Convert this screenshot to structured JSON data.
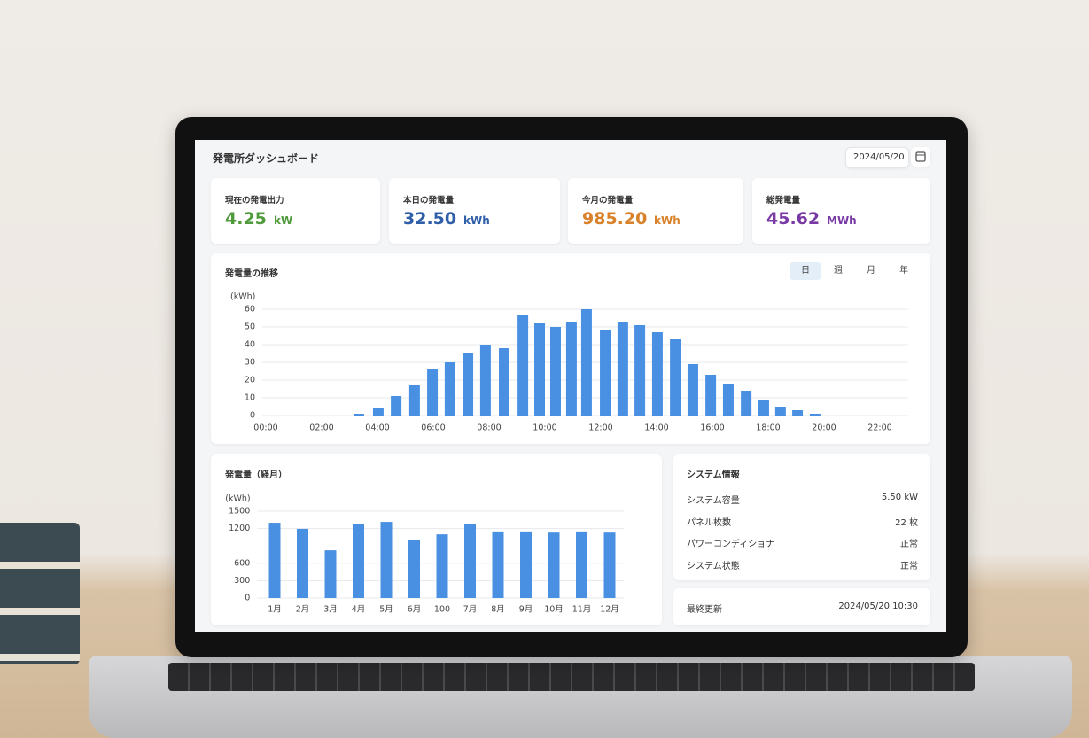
{
  "header": {
    "title": "発電所ダッシュボード",
    "date": "2024/05/20"
  },
  "kpis": [
    {
      "label": "現在の発電出力",
      "value": "4.25",
      "unit": "kW",
      "color": "#4f9a3b"
    },
    {
      "label": "本日の発電量",
      "value": "32.50",
      "unit": "kWh",
      "color": "#2f5fa8"
    },
    {
      "label": "今月の発電量",
      "value": "985.20",
      "unit": "kWh",
      "color": "#d9822b"
    },
    {
      "label": "総発電量",
      "value": "45.62",
      "unit": "MWh",
      "color": "#7a3aa5"
    }
  ],
  "period_tabs": [
    "日",
    "週",
    "月",
    "年"
  ],
  "chart_data": [
    {
      "type": "bar",
      "title": "発電量の推移",
      "y_unit": "(kWh)",
      "x": [
        3.33,
        4.03,
        4.67,
        5.33,
        5.97,
        6.6,
        7.24,
        7.87,
        8.54,
        9.21,
        9.81,
        10.38,
        10.95,
        11.49,
        12.16,
        12.79,
        13.4,
        14.03,
        14.67,
        15.3,
        15.94,
        16.57,
        17.21,
        17.84,
        18.44,
        19.05,
        19.68
      ],
      "values": [
        1,
        4,
        11,
        17,
        26,
        30,
        35,
        40,
        38,
        57,
        52,
        50,
        53,
        60,
        48,
        53,
        51,
        47,
        43,
        29,
        23,
        18,
        14,
        9,
        5,
        3,
        1
      ],
      "color": "#4a90e2",
      "xlim": [
        0,
        23
      ],
      "xticks": [
        {
          "value": 0,
          "label": "00:00"
        },
        {
          "value": 2,
          "label": "02:00"
        },
        {
          "value": 4,
          "label": "04:00"
        },
        {
          "value": 6,
          "label": "06:00"
        },
        {
          "value": 8,
          "label": "08:00"
        },
        {
          "value": 10,
          "label": "10:00"
        },
        {
          "value": 12,
          "label": "12:00"
        },
        {
          "value": 14,
          "label": "14:00"
        },
        {
          "value": 16,
          "label": "16:00"
        },
        {
          "value": 18,
          "label": "18:00"
        },
        {
          "value": 20,
          "label": "20:00"
        },
        {
          "value": 22,
          "label": "22:00"
        }
      ],
      "ylim": [
        0,
        60
      ],
      "yticks": [
        0,
        10,
        20,
        30,
        40,
        50,
        60
      ],
      "grid": true
    },
    {
      "type": "bar",
      "title": "発電量（経月）",
      "y_unit": "(kWh)",
      "categories": [
        "1月",
        "2月",
        "3月",
        "4月",
        "5月",
        "6月",
        "100",
        "7月",
        "8月",
        "9月",
        "10月",
        "11月",
        "12月"
      ],
      "values": [
        1300,
        1195,
        825,
        1285,
        1315,
        995,
        1100,
        1285,
        1150,
        1150,
        1130,
        1150,
        1130
      ],
      "color": "#4a90e2",
      "ylim": [
        0,
        1500
      ],
      "yticks": [
        0,
        300,
        600,
        1200,
        1500
      ],
      "grid": true
    }
  ],
  "system_info": {
    "title": "システム情報",
    "rows": [
      [
        "システム容量",
        "5.50 kW"
      ],
      [
        "パネル枚数",
        "22 枚"
      ],
      [
        "パワーコンディショナ",
        "正常"
      ],
      [
        "システム状態",
        "正常"
      ]
    ]
  },
  "last_updated": {
    "label": "最終更新",
    "value": "2024/05/20 10:30"
  }
}
